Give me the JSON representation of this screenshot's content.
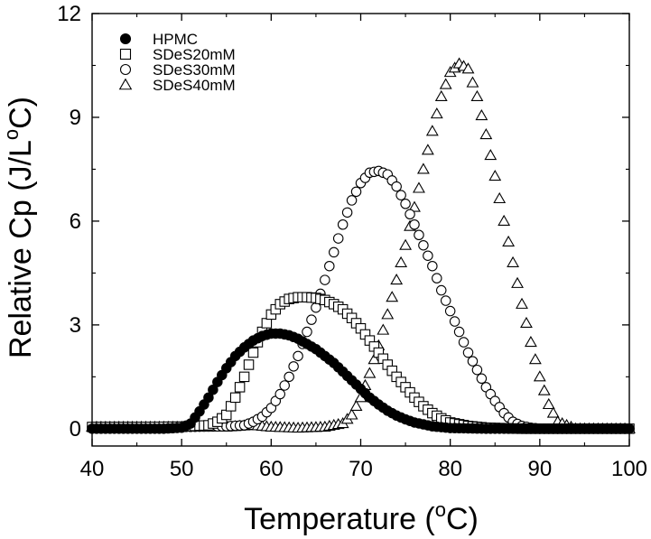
{
  "chart_data": {
    "type": "scatter",
    "xlabel": "Temperature (",
    "xlabel_sup": "o",
    "xlabel_end": "C)",
    "ylabel": "Relative Cp (J/L",
    "ylabel_sup": "o",
    "ylabel_end": "C)",
    "xlim": [
      40,
      100
    ],
    "ylim": [
      -0.5,
      12
    ],
    "xticks": [
      40,
      50,
      60,
      70,
      80,
      90,
      100
    ],
    "yticks": [
      0,
      3,
      6,
      9,
      12
    ],
    "grid": false,
    "legend_position": "top-left",
    "series": [
      {
        "name": "HPMC",
        "marker": "filled-circle",
        "color": "#000000",
        "x": [
          40,
          44,
          48,
          50,
          51,
          52,
          53,
          54,
          55,
          56,
          57,
          58,
          59,
          60,
          61,
          62,
          63,
          64,
          65,
          66,
          67,
          68,
          69,
          70,
          71,
          72,
          73,
          74,
          75,
          76,
          78,
          80,
          84,
          88,
          92,
          96,
          100
        ],
        "y": [
          0,
          0,
          0,
          0.03,
          0.15,
          0.5,
          0.9,
          1.35,
          1.75,
          2.1,
          2.35,
          2.55,
          2.68,
          2.75,
          2.75,
          2.7,
          2.6,
          2.45,
          2.3,
          2.1,
          1.9,
          1.65,
          1.4,
          1.15,
          0.9,
          0.7,
          0.52,
          0.38,
          0.27,
          0.18,
          0.07,
          0.02,
          0,
          0,
          0,
          0,
          0
        ]
      },
      {
        "name": "SDeS20mM",
        "marker": "open-square",
        "color": "#000000",
        "x": [
          40,
          45,
          50,
          53,
          54,
          55,
          56,
          57,
          58,
          59,
          60,
          61,
          62,
          63,
          64,
          65,
          66,
          67,
          68,
          69,
          70,
          71,
          72,
          73,
          74,
          75,
          76,
          77,
          78,
          79,
          80,
          82,
          84,
          88,
          92,
          100
        ],
        "y": [
          0.05,
          0.05,
          0.06,
          0.1,
          0.2,
          0.4,
          0.9,
          1.5,
          2.2,
          2.8,
          3.3,
          3.6,
          3.75,
          3.8,
          3.8,
          3.78,
          3.72,
          3.6,
          3.45,
          3.2,
          2.9,
          2.55,
          2.2,
          1.85,
          1.5,
          1.2,
          0.9,
          0.65,
          0.45,
          0.3,
          0.18,
          0.08,
          0.03,
          0,
          0,
          0
        ]
      },
      {
        "name": "SDeS30mM",
        "marker": "open-circle",
        "color": "#000000",
        "x": [
          40,
          45,
          50,
          55,
          57,
          58,
          59,
          60,
          61,
          62,
          63,
          64,
          65,
          66,
          67,
          68,
          69,
          70,
          71,
          72,
          73,
          74,
          75,
          76,
          77,
          78,
          79,
          80,
          81,
          82,
          83,
          84,
          85,
          86,
          87,
          88,
          89,
          90,
          92,
          95,
          100
        ],
        "y": [
          0.05,
          0.05,
          0.05,
          0.07,
          0.1,
          0.2,
          0.35,
          0.6,
          1.0,
          1.5,
          2.1,
          2.8,
          3.5,
          4.3,
          5.1,
          5.9,
          6.6,
          7.1,
          7.4,
          7.45,
          7.35,
          7.0,
          6.5,
          5.9,
          5.3,
          4.7,
          4.0,
          3.4,
          2.8,
          2.2,
          1.7,
          1.2,
          0.8,
          0.45,
          0.2,
          0.08,
          0.03,
          0,
          0,
          0,
          0
        ]
      },
      {
        "name": "SDeS40mM",
        "marker": "open-triangle",
        "color": "#000000",
        "x": [
          40,
          45,
          50,
          55,
          58,
          60,
          63,
          66,
          68,
          69,
          70,
          71,
          72,
          73,
          74,
          75,
          76,
          77,
          78,
          79,
          80,
          81,
          82,
          83,
          84,
          85,
          86,
          87,
          88,
          89,
          90,
          91,
          92,
          94,
          97,
          100
        ],
        "y": [
          0.05,
          0.05,
          0.05,
          0.05,
          0.1,
          0.05,
          0.02,
          0.05,
          0.15,
          0.4,
          0.9,
          1.6,
          2.4,
          3.3,
          4.3,
          5.3,
          6.4,
          7.5,
          8.6,
          9.6,
          10.3,
          10.55,
          10.4,
          9.6,
          8.5,
          7.3,
          6.0,
          4.8,
          3.6,
          2.5,
          1.5,
          0.7,
          0.2,
          0,
          0,
          0
        ]
      }
    ]
  }
}
